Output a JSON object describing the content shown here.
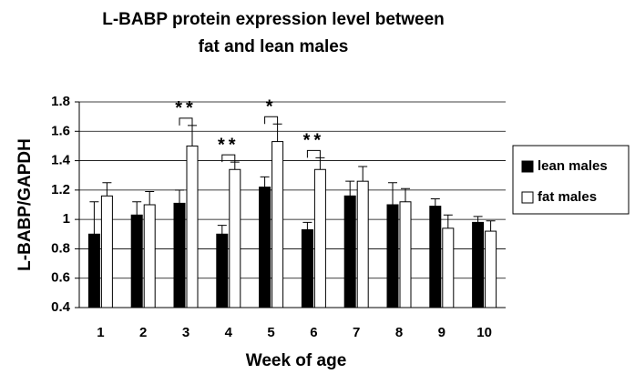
{
  "chart_data": {
    "type": "bar",
    "title": [
      "L-BABP protein expression level between",
      "fat and lean males"
    ],
    "x_label": "Week of age",
    "y_label": "L-BABP/GAPDH",
    "categories": [
      "1",
      "2",
      "3",
      "4",
      "5",
      "6",
      "7",
      "8",
      "9",
      "10"
    ],
    "series": [
      {
        "name": "lean males",
        "color": "#000000",
        "values": [
          0.9,
          1.03,
          1.11,
          0.9,
          1.22,
          0.93,
          1.16,
          1.1,
          1.09,
          0.98
        ],
        "errors": [
          0.22,
          0.09,
          0.09,
          0.06,
          0.07,
          0.05,
          0.1,
          0.15,
          0.05,
          0.04
        ]
      },
      {
        "name": "fat males",
        "color": "#ffffff",
        "values": [
          1.16,
          1.1,
          1.5,
          1.34,
          1.53,
          1.34,
          1.26,
          1.12,
          0.94,
          0.92
        ],
        "errors": [
          0.09,
          0.09,
          0.14,
          0.05,
          0.12,
          0.08,
          0.1,
          0.09,
          0.09,
          0.07
        ]
      }
    ],
    "annotations": [
      {
        "category": "3",
        "text": "**"
      },
      {
        "category": "4",
        "text": "**"
      },
      {
        "category": "5",
        "text": "*"
      },
      {
        "category": "6",
        "text": "**"
      }
    ],
    "ylim": [
      0.4,
      1.8
    ],
    "yticks": [
      0.4,
      0.6,
      0.8,
      1,
      1.2,
      1.4,
      1.6,
      1.8
    ],
    "grid": true,
    "legend": "right"
  }
}
